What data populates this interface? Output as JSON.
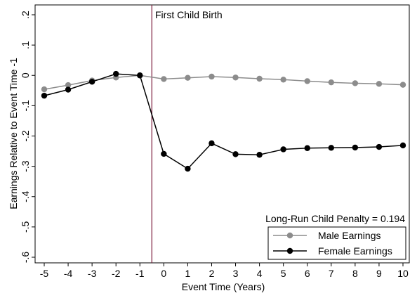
{
  "chart_data": {
    "type": "line",
    "title": "",
    "xlabel": "Event Time (Years)",
    "ylabel": "Earnings Relative to Event Time -1",
    "x": [
      -5,
      -4,
      -3,
      -2,
      -1,
      0,
      1,
      2,
      3,
      4,
      5,
      6,
      7,
      8,
      9,
      10
    ],
    "xlim": [
      -5,
      10
    ],
    "ylim": [
      -0.6,
      0.2
    ],
    "x_tick_labels": [
      "-5",
      "-4",
      "-3",
      "-2",
      "-1",
      "0",
      "1",
      "2",
      "3",
      "4",
      "5",
      "6",
      "7",
      "8",
      "9",
      "10"
    ],
    "y_ticks": [
      0.2,
      0.1,
      0,
      -0.1,
      -0.2,
      -0.3,
      -0.4,
      -0.5,
      -0.6
    ],
    "y_tick_labels": [
      ".2",
      ".1",
      "0",
      "-.1",
      "-.2",
      "-.3",
      "-.4",
      "-.5",
      "-.6"
    ],
    "grid": false,
    "series": [
      {
        "name": "Male Earnings",
        "color": "#8c8c8c",
        "values": [
          -0.046,
          -0.032,
          -0.017,
          -0.007,
          0.0,
          -0.012,
          -0.008,
          -0.004,
          -0.007,
          -0.011,
          -0.014,
          -0.019,
          -0.023,
          -0.026,
          -0.028,
          -0.031
        ]
      },
      {
        "name": "Female Earnings",
        "color": "#000000",
        "values": [
          -0.067,
          -0.047,
          -0.021,
          0.005,
          0.0,
          -0.259,
          -0.308,
          -0.224,
          -0.26,
          -0.262,
          -0.244,
          -0.24,
          -0.239,
          -0.238,
          -0.236,
          -0.231
        ]
      }
    ],
    "vertical_line": {
      "x": -0.5,
      "label": "First Child Birth",
      "color": "#7b1a3a"
    },
    "annotation": "Long-Run Child Penalty = 0.194",
    "legend": {
      "position": "bottom-right",
      "entries": [
        "Male Earnings",
        "Female Earnings"
      ]
    }
  }
}
